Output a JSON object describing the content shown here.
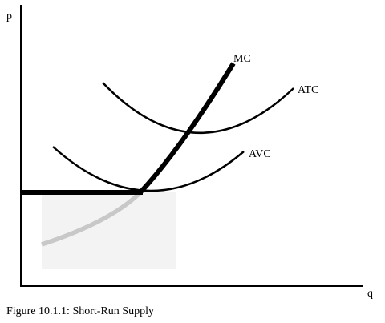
{
  "figure": {
    "caption": "Figure 10.1.1: Short-Run Supply",
    "axes": {
      "y_label": "p",
      "x_label": "q"
    },
    "curves": {
      "mc_label": "MC",
      "atc_label": "ATC",
      "avc_label": "AVC"
    },
    "colors": {
      "curve": "#000000",
      "supply": "#000000",
      "below_shutdown": "#c8c8c8",
      "shaded_region": "#f3f3f3"
    }
  }
}
